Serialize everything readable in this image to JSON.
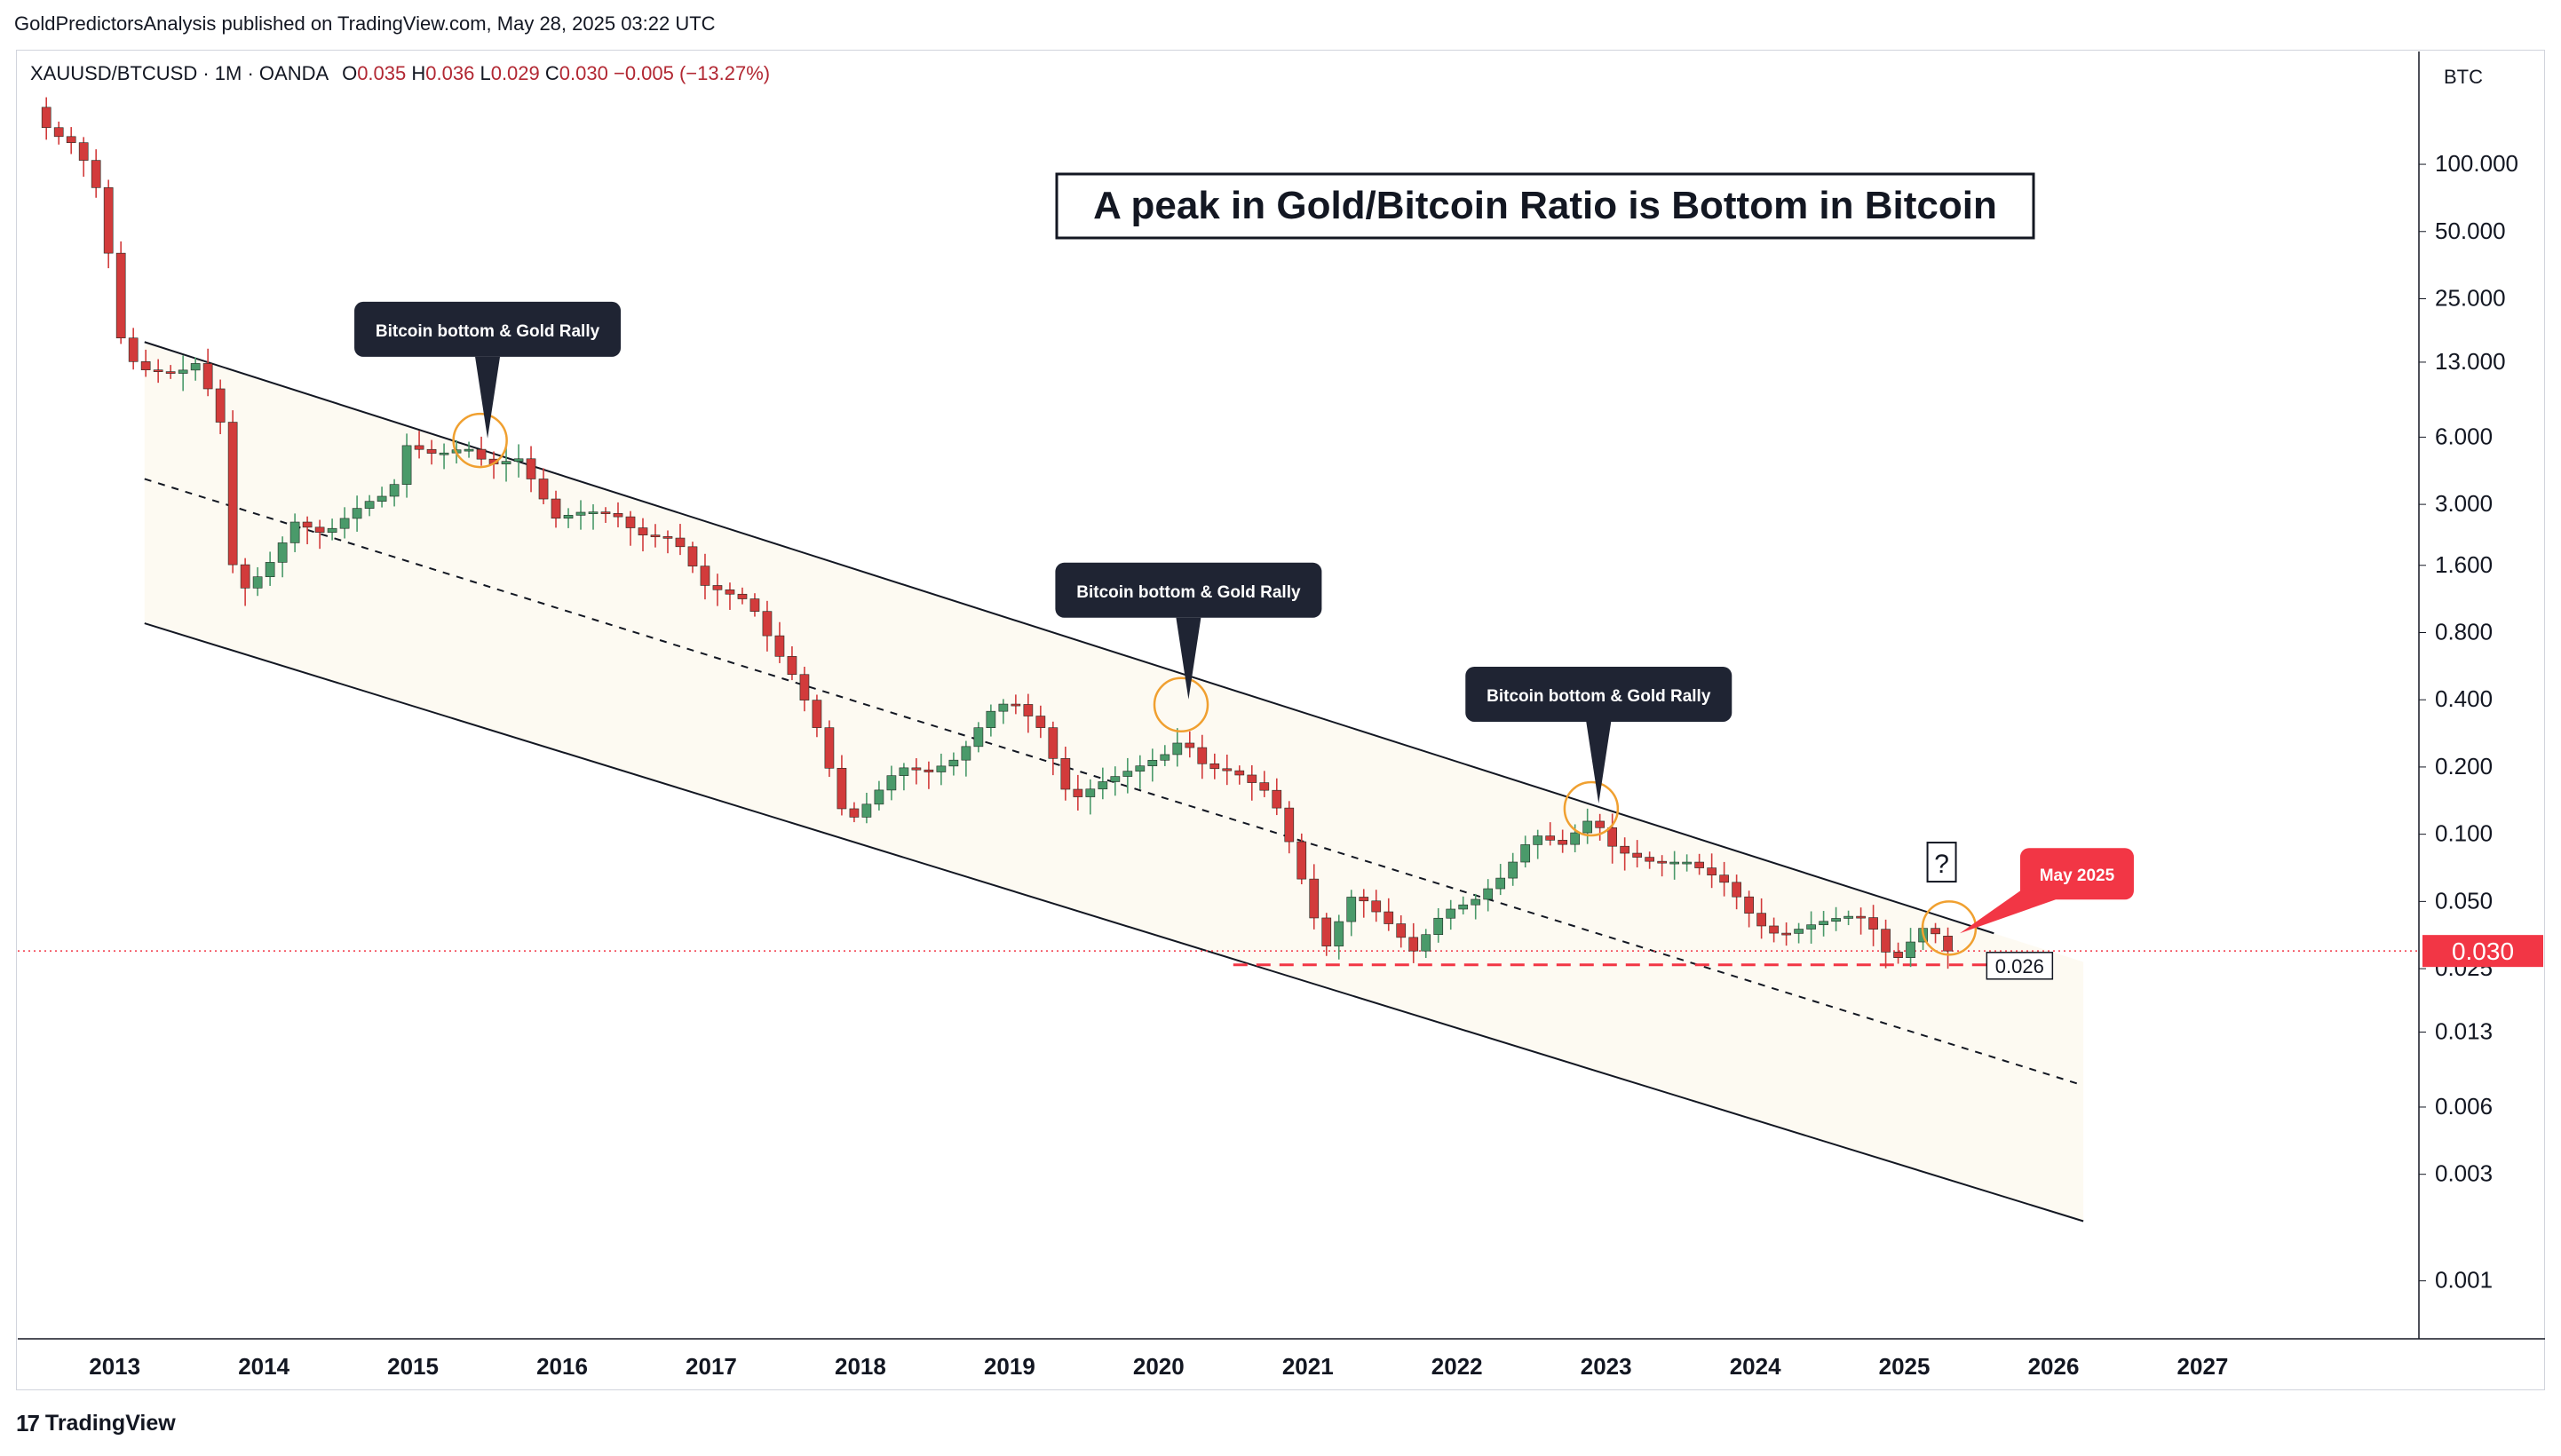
{
  "header": {
    "published": "GoldPredictorsAnalysis published on TradingView.com, May 28, 2025 03:22 UTC"
  },
  "legend": {
    "symbol": "XAUUSD/BTCUSD · 1M · OANDA",
    "o_label": "O",
    "o": "0.035",
    "h_label": "H",
    "h": "0.036",
    "l_label": "L",
    "l": "0.029",
    "c_label": "C",
    "c": "0.030",
    "change": "−0.005 (−13.27%)"
  },
  "footer": {
    "brand": "TradingView",
    "brand_icon": "tradingview-logo-icon"
  },
  "colors": {
    "up": "#4a9a6a",
    "down": "#d23b3b",
    "channel_fill": "#fdfaf2",
    "callout_bg": "#1f2433",
    "highlight_circle": "#f0a030",
    "price_label": "#f23645",
    "support_line": "#f23645"
  },
  "chart_data": {
    "type": "candlestick",
    "title": "A peak in Gold/Bitcoin Ratio is Bottom in Bitcoin",
    "y_axis_label": "BTC",
    "y_scale": "log",
    "y_ticks": [
      "100.000",
      "50.000",
      "25.000",
      "13.000",
      "6.000",
      "3.000",
      "1.600",
      "0.800",
      "0.400",
      "0.200",
      "0.100",
      "0.050",
      "0.025",
      "0.013",
      "0.006",
      "0.003",
      "0.001"
    ],
    "y_tick_values": [
      100,
      50,
      25,
      13,
      6,
      3,
      1.6,
      0.8,
      0.4,
      0.2,
      0.1,
      0.05,
      0.025,
      0.013,
      0.006,
      0.003,
      0.001
    ],
    "x_ticks": [
      "2013",
      "2014",
      "2015",
      "2016",
      "2017",
      "2018",
      "2019",
      "2020",
      "2021",
      "2022",
      "2023",
      "2024",
      "2025",
      "2026",
      "2027"
    ],
    "xlim": [
      2012.35,
      2028.45
    ],
    "ylim": [
      0.00055,
      320
    ],
    "grid": false,
    "current_price": "0.030",
    "current_price_value": 0.03,
    "support_label": "0.026",
    "support_value": 0.026,
    "support_range": [
      2020.5,
      2025.6
    ],
    "channel": {
      "upper": [
        [
          2013.2,
          16
        ],
        [
          2025.6,
          0.036
        ]
      ],
      "mid": [
        [
          2013.2,
          3.9
        ],
        [
          2026.2,
          0.0075
        ]
      ],
      "lower": [
        [
          2013.2,
          0.88
        ],
        [
          2026.2,
          0.00185
        ]
      ]
    },
    "annotations": [
      {
        "text": "Bitcoin bottom & Gold Rally",
        "x": 2015.5,
        "y": 5.6,
        "type": "callout"
      },
      {
        "text": "Bitcoin bottom & Gold Rally",
        "x": 2020.2,
        "y": 0.38,
        "type": "callout"
      },
      {
        "text": "Bitcoin bottom & Gold Rally",
        "x": 2022.95,
        "y": 0.13,
        "type": "callout"
      },
      {
        "text": "May 2025",
        "x": 2025.3,
        "y": 0.036,
        "type": "callout-red"
      },
      {
        "text": "?",
        "x": 2025.25,
        "y": 0.075,
        "type": "box"
      }
    ],
    "highlight_circles": [
      {
        "x": 2015.45,
        "y": 5.8
      },
      {
        "x": 2020.15,
        "y": 0.38
      },
      {
        "x": 2022.9,
        "y": 0.13
      },
      {
        "x": 2025.3,
        "y": 0.038
      }
    ],
    "ohlc_anchors": [
      [
        2012.5,
        180
      ],
      [
        2012.6,
        140
      ],
      [
        2012.75,
        125
      ],
      [
        2012.9,
        90
      ],
      [
        2013.0,
        40
      ],
      [
        2013.1,
        14
      ],
      [
        2013.25,
        12
      ],
      [
        2013.45,
        11.5
      ],
      [
        2013.6,
        13
      ],
      [
        2013.75,
        7
      ],
      [
        2013.85,
        1.2
      ],
      [
        2013.95,
        1.3
      ],
      [
        2014.1,
        1.7
      ],
      [
        2014.25,
        2.5
      ],
      [
        2014.45,
        2.2
      ],
      [
        2014.7,
        3.0
      ],
      [
        2014.9,
        3.4
      ],
      [
        2015.0,
        5.5
      ],
      [
        2015.2,
        5.0
      ],
      [
        2015.4,
        5.4
      ],
      [
        2015.55,
        4.5
      ],
      [
        2015.75,
        4.8
      ],
      [
        2015.9,
        3.3
      ],
      [
        2016.0,
        2.6
      ],
      [
        2016.2,
        2.8
      ],
      [
        2016.4,
        2.7
      ],
      [
        2016.55,
        2.2
      ],
      [
        2016.8,
        2.1
      ],
      [
        2017.0,
        1.3
      ],
      [
        2017.15,
        1.2
      ],
      [
        2017.3,
        1.1
      ],
      [
        2017.45,
        0.7
      ],
      [
        2017.6,
        0.5
      ],
      [
        2017.75,
        0.3
      ],
      [
        2017.95,
        0.11
      ],
      [
        2018.1,
        0.14
      ],
      [
        2018.3,
        0.2
      ],
      [
        2018.5,
        0.19
      ],
      [
        2018.7,
        0.22
      ],
      [
        2018.9,
        0.35
      ],
      [
        2019.05,
        0.4
      ],
      [
        2019.25,
        0.3
      ],
      [
        2019.45,
        0.14
      ],
      [
        2019.65,
        0.17
      ],
      [
        2019.9,
        0.2
      ],
      [
        2020.1,
        0.23
      ],
      [
        2020.2,
        0.27
      ],
      [
        2020.35,
        0.2
      ],
      [
        2020.55,
        0.19
      ],
      [
        2020.8,
        0.15
      ],
      [
        2020.9,
        0.1
      ],
      [
        2021.05,
        0.05
      ],
      [
        2021.15,
        0.03
      ],
      [
        2021.35,
        0.055
      ],
      [
        2021.55,
        0.042
      ],
      [
        2021.75,
        0.03
      ],
      [
        2021.95,
        0.045
      ],
      [
        2022.15,
        0.05
      ],
      [
        2022.35,
        0.065
      ],
      [
        2022.55,
        0.1
      ],
      [
        2022.75,
        0.09
      ],
      [
        2022.95,
        0.12
      ],
      [
        2023.1,
        0.085
      ],
      [
        2023.35,
        0.075
      ],
      [
        2023.6,
        0.075
      ],
      [
        2023.85,
        0.06
      ],
      [
        2024.05,
        0.04
      ],
      [
        2024.2,
        0.035
      ],
      [
        2024.45,
        0.04
      ],
      [
        2024.65,
        0.043
      ],
      [
        2024.8,
        0.042
      ],
      [
        2024.9,
        0.03
      ],
      [
        2025.0,
        0.028
      ],
      [
        2025.1,
        0.034
      ],
      [
        2025.2,
        0.04
      ],
      [
        2025.33,
        0.03
      ]
    ]
  }
}
